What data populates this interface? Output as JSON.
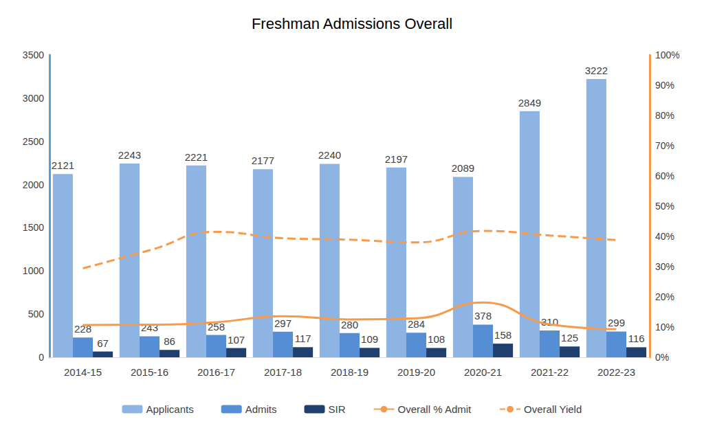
{
  "chart_data": {
    "type": "bar",
    "title": "Freshman Admissions Overall",
    "categories": [
      "2014-15",
      "2015-16",
      "2016-17",
      "2017-18",
      "2018-19",
      "2019-20",
      "2020-21",
      "2021-22",
      "2022-23"
    ],
    "series": [
      {
        "name": "Applicants",
        "type": "bar",
        "color": "#8eb4e3",
        "data_labels": true,
        "values": [
          2121,
          2243,
          2221,
          2177,
          2240,
          2197,
          2089,
          2849,
          3222
        ]
      },
      {
        "name": "Admits",
        "type": "bar",
        "color": "#558ed5",
        "data_labels": true,
        "values": [
          228,
          243,
          258,
          297,
          280,
          284,
          378,
          310,
          299
        ]
      },
      {
        "name": "SIR",
        "type": "bar",
        "color": "#1f3f6e",
        "data_labels": true,
        "values": [
          67,
          86,
          107,
          117,
          109,
          108,
          158,
          125,
          116
        ]
      },
      {
        "name": "Overall % Admit",
        "type": "line",
        "axis": "y2",
        "color": "#f79a4a",
        "line_style": "solid",
        "marker": "none",
        "data_labels": false,
        "values": [
          10.7,
          10.8,
          11.6,
          13.6,
          12.5,
          12.9,
          18.1,
          10.9,
          9.3
        ]
      },
      {
        "name": "Overall Yield",
        "type": "line",
        "axis": "y2",
        "color": "#f79a4a",
        "line_style": "dashed",
        "marker": "none",
        "data_labels": false,
        "values": [
          29.4,
          35.4,
          41.5,
          39.4,
          38.9,
          38.0,
          41.8,
          40.3,
          38.8
        ]
      }
    ],
    "ylim": [
      0,
      3500
    ],
    "yticks": [
      0,
      500,
      1000,
      1500,
      2000,
      2500,
      3000,
      3500
    ],
    "y2lim": [
      0,
      100
    ],
    "y2ticks": [
      {
        "value": 0,
        "label": "0%"
      },
      {
        "value": 10,
        "label": "10%"
      },
      {
        "value": 20,
        "label": "20%"
      },
      {
        "value": 30,
        "label": "30%"
      },
      {
        "value": 40,
        "label": "40%"
      },
      {
        "value": 50,
        "label": "50%"
      },
      {
        "value": 60,
        "label": "60%"
      },
      {
        "value": 70,
        "label": "70%"
      },
      {
        "value": 80,
        "label": "80%"
      },
      {
        "value": 90,
        "label": "90%"
      },
      {
        "value": 100,
        "label": "100%"
      }
    ],
    "grid": false,
    "legend": "bottom"
  }
}
